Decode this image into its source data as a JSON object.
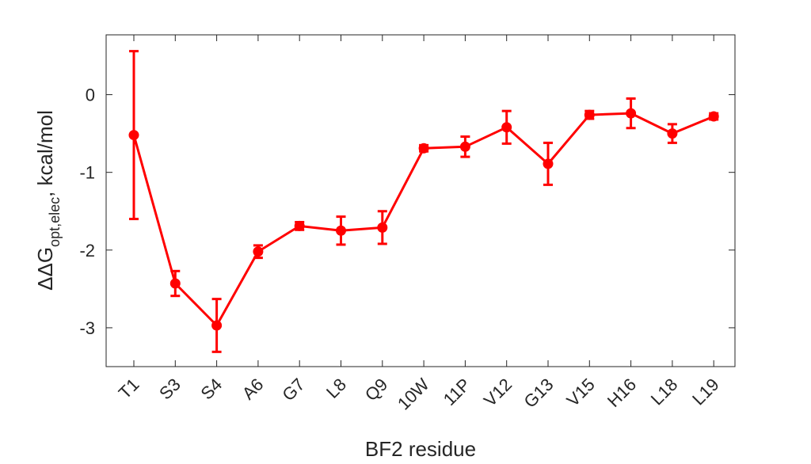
{
  "chart_data": {
    "type": "line",
    "title": "",
    "xlabel": "BF2 residue",
    "ylabel": {
      "prefix": "ΔΔG",
      "subscript": "opt,elec",
      "suffix": ", kcal/mol"
    },
    "categories": [
      "T1",
      "S3",
      "S4",
      "A6",
      "G7",
      "L8",
      "Q9",
      "10W",
      "11P",
      "V12",
      "G13",
      "V15",
      "H16",
      "L18",
      "L19"
    ],
    "series": [
      {
        "values": [
          -0.52,
          -2.43,
          -2.97,
          -2.02,
          -1.69,
          -1.75,
          -1.71,
          -0.69,
          -0.67,
          -0.42,
          -0.89,
          -0.26,
          -0.24,
          -0.5,
          -0.28
        ],
        "error": [
          1.08,
          0.16,
          0.34,
          0.08,
          0.05,
          0.18,
          0.21,
          0.04,
          0.13,
          0.21,
          0.27,
          0.05,
          0.19,
          0.12,
          0.04
        ],
        "color": "#ff0000"
      }
    ],
    "ylim": [
      -3.5,
      0.77
    ],
    "yticks": [
      "-3",
      "-2",
      "-1",
      "0"
    ],
    "grid": false,
    "legend": "none"
  }
}
